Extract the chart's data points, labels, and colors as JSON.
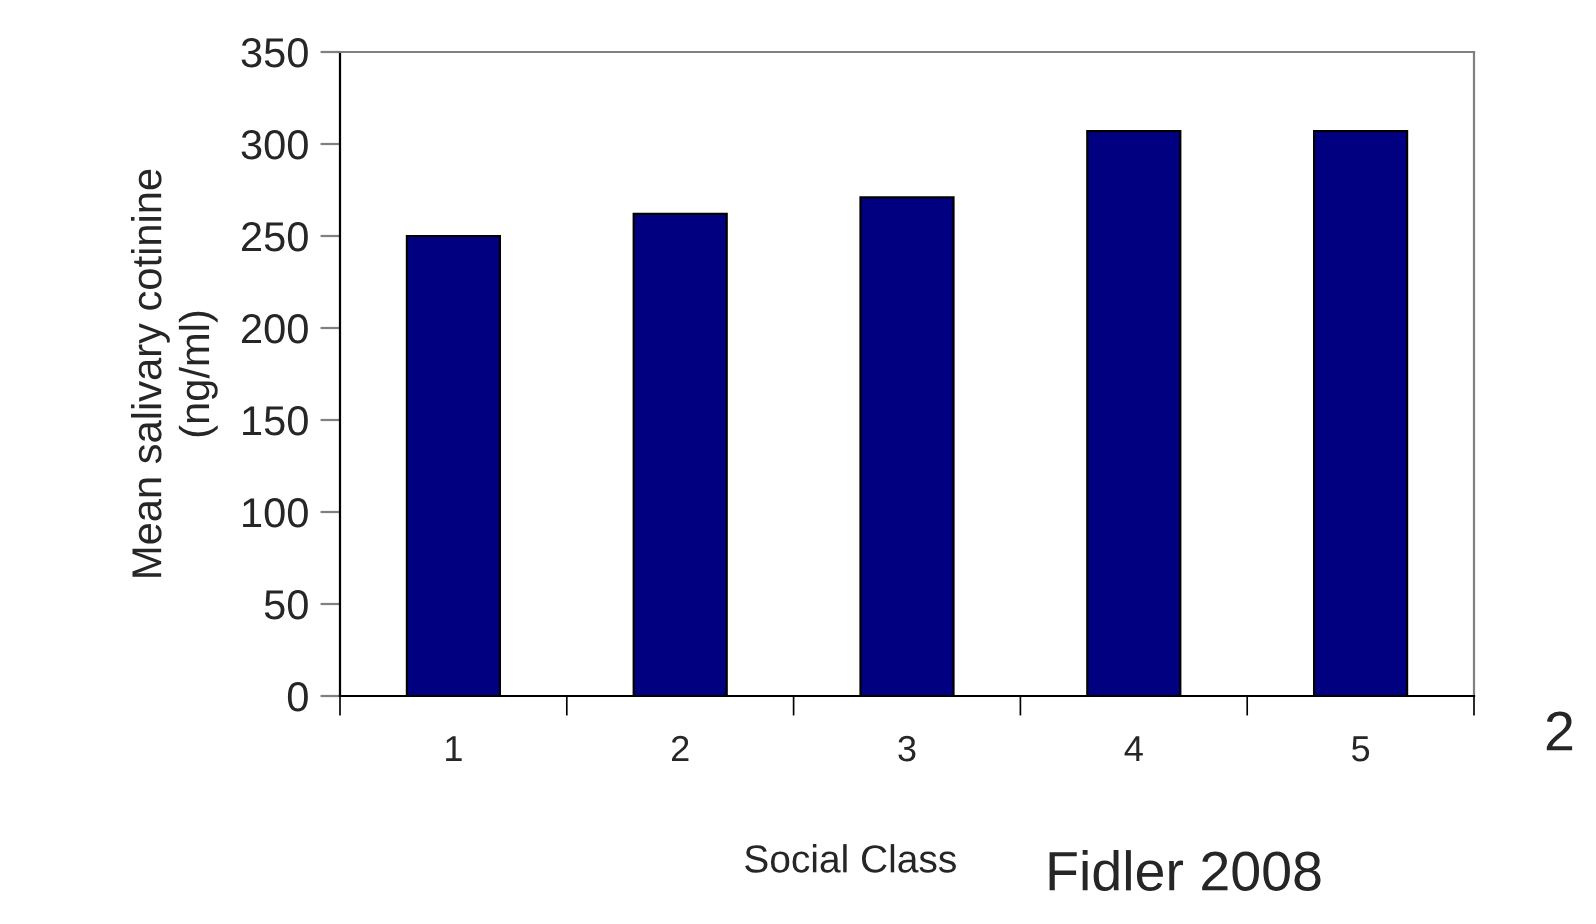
{
  "chart_data": {
    "type": "bar",
    "xlabel": "Social Class",
    "ylabel": "Mean salivary cotinine\n(ng/ml)",
    "categories": [
      "1",
      "2",
      "3",
      "4",
      "5"
    ],
    "values": [
      250,
      262,
      271,
      307,
      307
    ],
    "color": "#000080",
    "ylim": [
      0,
      350
    ],
    "yticks": [
      0,
      50,
      100,
      150,
      200,
      250,
      300,
      350
    ],
    "grid": false,
    "annotations": [
      "2",
      "Fidler 2008"
    ]
  }
}
